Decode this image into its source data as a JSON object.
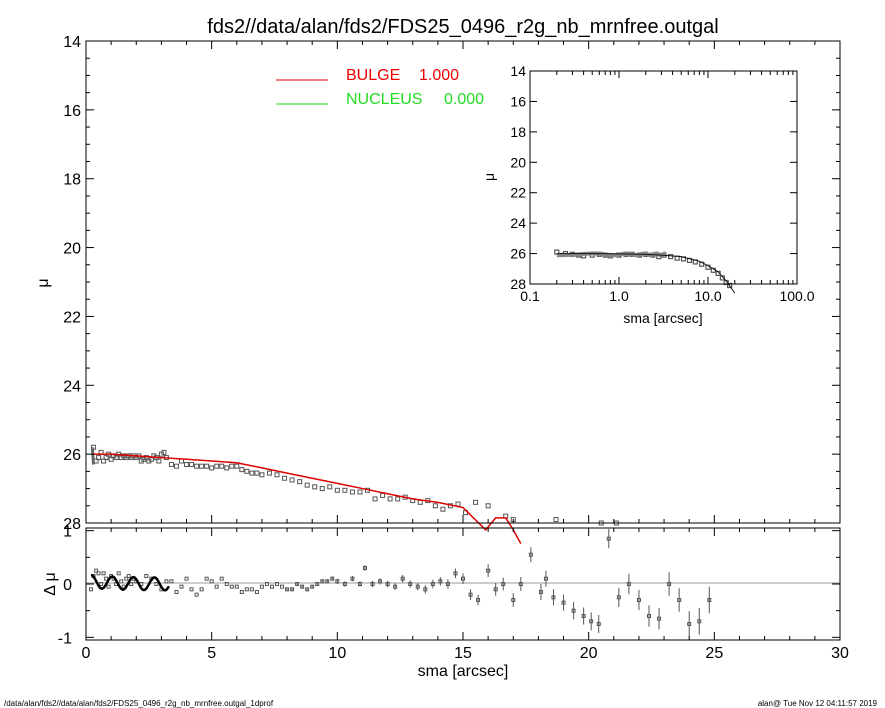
{
  "title": "fds2//data/alan/fds2/FDS25_0496_r2g_nb_mrnfree.outgal",
  "footer_left": "/data/alan/fds2//data/alan/fds2/FDS25_0496_r2g_nb_mrnfree.outgal_1dprof",
  "footer_right": "alan@  Tue Nov 12 04:11:57 2019",
  "colors": {
    "model": "#dd0000",
    "bulge": "#ee0000",
    "nucleus": "#22dd22",
    "points": "#555555",
    "axes": "#000000"
  },
  "chart_data": [
    {
      "id": "main-profile",
      "type": "scatter",
      "ylabel": "μ",
      "xlim": [
        0,
        30
      ],
      "ylim": [
        14,
        28
      ],
      "y_inverted": true,
      "yticks": [
        "14",
        "16",
        "18",
        "20",
        "22",
        "24",
        "26",
        "28"
      ],
      "legend": {
        "placement": "top-center",
        "entries": [
          {
            "name": "BULGE",
            "value": "1.000",
            "color": "#ee0000"
          },
          {
            "name": "NUCLEUS",
            "value": "0.000",
            "color": "#22dd22"
          }
        ]
      },
      "series": [
        {
          "name": "data",
          "x": [
            0.3,
            0.4,
            0.5,
            0.6,
            0.7,
            0.8,
            0.9,
            1.0,
            1.1,
            1.2,
            1.3,
            1.4,
            1.5,
            1.6,
            1.7,
            1.8,
            1.9,
            2.0,
            2.1,
            2.2,
            2.3,
            2.4,
            2.5,
            2.6,
            2.7,
            2.8,
            2.9,
            3.0,
            3.1,
            3.2,
            3.4,
            3.6,
            3.8,
            4.0,
            4.2,
            4.4,
            4.6,
            4.8,
            5.0,
            5.2,
            5.4,
            5.6,
            5.8,
            6.0,
            6.2,
            6.4,
            6.6,
            6.8,
            7.0,
            7.3,
            7.6,
            7.9,
            8.2,
            8.5,
            8.8,
            9.1,
            9.4,
            9.7,
            10.0,
            10.3,
            10.6,
            10.9,
            11.2,
            11.5,
            11.8,
            12.1,
            12.4,
            12.7,
            13.0,
            13.3,
            13.6,
            13.9,
            14.2,
            14.5,
            14.8,
            15.1,
            15.5,
            16.0,
            16.7,
            17.0,
            18.7,
            20.5,
            21.1
          ],
          "y": [
            25.8,
            26.2,
            26.1,
            25.95,
            26.2,
            26.1,
            26.0,
            26.15,
            26.05,
            26.1,
            26.0,
            26.1,
            26.05,
            26.1,
            26.05,
            26.1,
            26.05,
            26.1,
            26.05,
            26.2,
            26.15,
            26.1,
            26.2,
            26.15,
            26.05,
            26.1,
            26.2,
            26.0,
            25.95,
            26.1,
            26.3,
            26.35,
            26.2,
            26.3,
            26.3,
            26.35,
            26.35,
            26.35,
            26.4,
            26.35,
            26.35,
            26.4,
            26.35,
            26.35,
            26.45,
            26.5,
            26.55,
            26.55,
            26.6,
            26.55,
            26.6,
            26.7,
            26.75,
            26.8,
            26.9,
            26.95,
            27.0,
            26.95,
            27.05,
            27.05,
            27.1,
            27.1,
            27.05,
            27.3,
            27.2,
            27.3,
            27.3,
            27.25,
            27.35,
            27.4,
            27.35,
            27.5,
            27.6,
            27.5,
            27.45,
            27.7,
            27.4,
            27.5,
            27.8,
            27.9,
            27.9,
            28.0,
            28.0
          ]
        },
        {
          "name": "BULGE",
          "type": "line",
          "x": [
            0.3,
            1,
            2,
            3,
            4,
            5,
            6,
            7,
            8,
            9,
            10,
            11,
            12,
            13,
            14,
            15,
            15.9,
            16.3,
            16.7,
            17.0,
            17.3
          ],
          "y": [
            26.0,
            26.0,
            26.05,
            26.1,
            26.15,
            26.2,
            26.25,
            26.4,
            26.55,
            26.7,
            26.85,
            27.0,
            27.15,
            27.3,
            27.4,
            27.55,
            28.2,
            27.85,
            27.85,
            28.2,
            28.6
          ]
        }
      ]
    },
    {
      "id": "residuals",
      "type": "scatter",
      "xlabel": "sma [arcsec]",
      "ylabel": "Δ μ",
      "xlim": [
        0,
        30
      ],
      "ylim": [
        -1.05,
        1.05
      ],
      "xticks": [
        "0",
        "5",
        "10",
        "15",
        "20",
        "25",
        "30"
      ],
      "yticks": [
        "1",
        "0",
        "-1"
      ],
      "series": [
        {
          "name": "residual",
          "x": [
            0.2,
            0.3,
            0.4,
            0.5,
            0.6,
            0.7,
            0.8,
            0.9,
            1.0,
            1.1,
            1.2,
            1.3,
            1.4,
            1.5,
            1.6,
            1.7,
            1.8,
            1.9,
            2.0,
            2.2,
            2.4,
            2.6,
            2.8,
            3.0,
            3.2,
            3.4,
            3.6,
            3.8,
            4.0,
            4.2,
            4.4,
            4.6,
            4.8,
            5.0,
            5.2,
            5.4,
            5.6,
            5.8,
            6.0,
            6.2,
            6.4,
            6.6,
            6.8,
            7.0,
            7.2,
            7.4,
            7.6,
            7.8,
            8.0,
            8.2,
            8.4,
            8.6,
            8.8,
            9.0,
            9.2,
            9.4,
            9.6,
            9.8,
            10.0,
            10.3,
            10.6,
            10.9,
            11.1,
            11.4,
            11.7,
            12.0,
            12.3,
            12.6,
            12.9,
            13.2,
            13.5,
            13.8,
            14.1,
            14.4,
            14.7,
            15.0,
            15.3,
            15.6,
            16.0,
            16.3,
            16.6,
            17.0,
            17.3,
            17.7,
            18.1,
            18.3,
            18.6,
            19.0,
            19.4,
            19.8,
            20.1,
            20.4,
            20.8,
            21.2,
            21.6,
            22.0,
            22.4,
            22.8,
            23.2,
            23.6,
            24.0,
            24.4,
            24.8
          ],
          "y": [
            -0.1,
            0.15,
            0.25,
            0.2,
            0.0,
            0.2,
            0.1,
            -0.05,
            0.15,
            0.1,
            0.0,
            0.2,
            0.05,
            -0.05,
            0.1,
            0.15,
            0.0,
            0.1,
            0.05,
            0.0,
            0.15,
            0.1,
            0.0,
            -0.1,
            0.05,
            0.05,
            -0.15,
            -0.05,
            0.1,
            -0.1,
            -0.2,
            -0.1,
            0.1,
            0.05,
            -0.05,
            0.1,
            0.0,
            -0.05,
            -0.05,
            -0.15,
            -0.1,
            -0.1,
            -0.15,
            -0.05,
            0.0,
            -0.05,
            0.0,
            -0.05,
            -0.1,
            -0.1,
            0.0,
            -0.05,
            -0.1,
            -0.05,
            0.0,
            0.05,
            0.05,
            0.1,
            0.05,
            0.0,
            0.1,
            0.0,
            0.3,
            0.0,
            0.05,
            0.0,
            -0.05,
            0.1,
            0.0,
            -0.05,
            -0.1,
            0.0,
            0.05,
            0.0,
            0.2,
            0.1,
            -0.2,
            -0.3,
            0.25,
            -0.1,
            0.0,
            -0.3,
            0.0,
            0.55,
            -0.15,
            0.1,
            -0.25,
            -0.35,
            -0.5,
            -0.6,
            -0.7,
            -0.75,
            0.85,
            -0.25,
            0.0,
            -0.3,
            -0.6,
            -0.65,
            0.0,
            -0.3,
            -0.75,
            -0.7,
            -0.3
          ],
          "err": [
            0.02,
            0.02,
            0.02,
            0.02,
            0.02,
            0.02,
            0.02,
            0.02,
            0.02,
            0.02,
            0.02,
            0.02,
            0.02,
            0.02,
            0.02,
            0.02,
            0.02,
            0.02,
            0.02,
            0.02,
            0.02,
            0.02,
            0.02,
            0.02,
            0.02,
            0.02,
            0.02,
            0.02,
            0.02,
            0.02,
            0.02,
            0.02,
            0.02,
            0.02,
            0.02,
            0.02,
            0.02,
            0.02,
            0.02,
            0.02,
            0.02,
            0.02,
            0.02,
            0.02,
            0.02,
            0.02,
            0.02,
            0.02,
            0.03,
            0.03,
            0.03,
            0.03,
            0.03,
            0.03,
            0.04,
            0.04,
            0.04,
            0.04,
            0.05,
            0.05,
            0.05,
            0.05,
            0.05,
            0.06,
            0.06,
            0.06,
            0.06,
            0.07,
            0.07,
            0.07,
            0.08,
            0.08,
            0.08,
            0.09,
            0.09,
            0.1,
            0.1,
            0.1,
            0.12,
            0.12,
            0.12,
            0.13,
            0.13,
            0.14,
            0.15,
            0.15,
            0.15,
            0.15,
            0.16,
            0.16,
            0.17,
            0.17,
            0.18,
            0.18,
            0.19,
            0.19,
            0.2,
            0.2,
            0.22,
            0.22,
            0.24,
            0.25,
            0.25
          ]
        }
      ]
    },
    {
      "id": "inset-log-profile",
      "type": "scatter",
      "xlabel": "sma [arcsec]",
      "ylabel": "μ",
      "xscale": "log",
      "xlim": [
        0.1,
        100.0
      ],
      "ylim": [
        14,
        28
      ],
      "y_inverted": true,
      "xticks": [
        "0.1",
        "1.0",
        "10.0",
        "100.0"
      ],
      "yticks": [
        "14",
        "16",
        "18",
        "20",
        "22",
        "24",
        "26",
        "28"
      ],
      "series": [
        {
          "name": "data",
          "x": [
            0.2,
            0.25,
            0.3,
            0.35,
            0.4,
            0.5,
            0.6,
            0.7,
            0.8,
            1.0,
            1.2,
            1.4,
            1.7,
            2.0,
            2.4,
            2.8,
            3.2,
            3.8,
            4.5,
            5.3,
            6.2,
            7.2,
            8.5,
            10.0,
            11.5,
            13.0,
            14.5,
            16.0,
            17.5
          ],
          "y": [
            25.9,
            26.0,
            26.05,
            26.1,
            26.15,
            26.1,
            26.05,
            26.1,
            26.15,
            26.1,
            26.05,
            26.05,
            26.1,
            26.05,
            26.1,
            26.2,
            26.1,
            26.2,
            26.3,
            26.35,
            26.45,
            26.55,
            26.7,
            26.9,
            27.1,
            27.3,
            27.6,
            27.9,
            28.1
          ]
        },
        {
          "name": "BULGE",
          "type": "line",
          "x": [
            0.2,
            0.5,
            1.0,
            2.0,
            3.0,
            5.0,
            8.0,
            10.0,
            13.0,
            16.0,
            20.0
          ],
          "y": [
            26.0,
            26.0,
            26.02,
            26.05,
            26.1,
            26.2,
            26.5,
            26.8,
            27.2,
            27.8,
            28.6
          ]
        }
      ]
    }
  ]
}
